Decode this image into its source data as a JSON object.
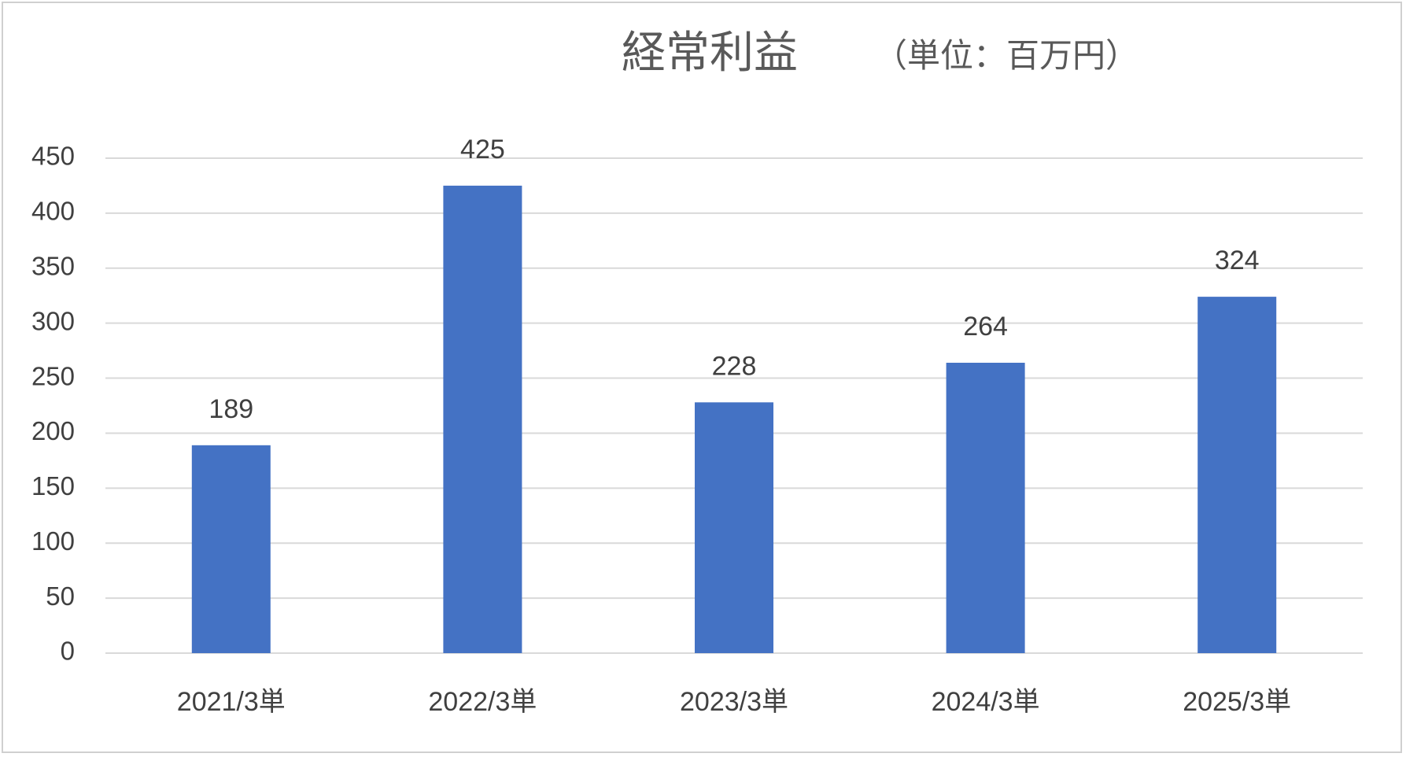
{
  "chart_data": {
    "type": "bar",
    "title": "経常利益",
    "subtitle": "（単位：百万円）",
    "categories": [
      "2021/3単",
      "2022/3単",
      "2023/3単",
      "2024/3単",
      "2025/3単"
    ],
    "values": [
      189,
      425,
      228,
      264,
      324
    ],
    "color": "#4472c4",
    "ylim": [
      0,
      450
    ],
    "yticks": [
      0,
      50,
      100,
      150,
      200,
      250,
      300,
      350,
      400,
      450
    ],
    "grid": true
  }
}
